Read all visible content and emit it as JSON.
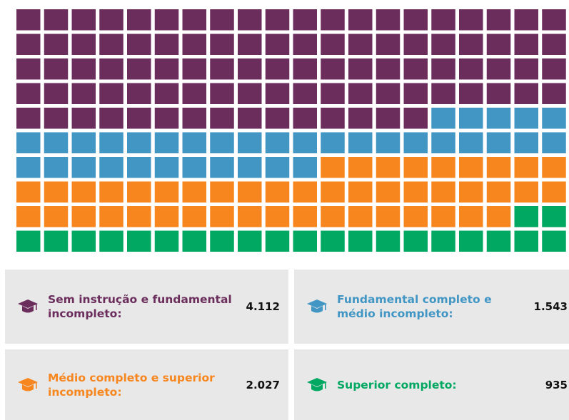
{
  "chart_data": {
    "type": "waffle",
    "grid_columns": 20,
    "grid_rows": 10,
    "series": [
      {
        "name": "Sem instrução e fundamental incompleto:",
        "color": "#6b2d5c",
        "values": [
          4112
        ],
        "value_labels": [
          "4.112"
        ]
      },
      {
        "name": "Fundamental completo e médio incompleto:",
        "color": "#4196c4",
        "values": [
          1543
        ],
        "value_labels": [
          "1.543"
        ]
      },
      {
        "name": "Médio completo e superior incompleto:",
        "color": "#f7861e",
        "values": [
          2027
        ],
        "value_labels": [
          "2.027"
        ]
      },
      {
        "name": "Superior completo:",
        "color": "#00a862",
        "values": [
          935
        ],
        "value_labels": [
          "935"
        ]
      }
    ]
  }
}
